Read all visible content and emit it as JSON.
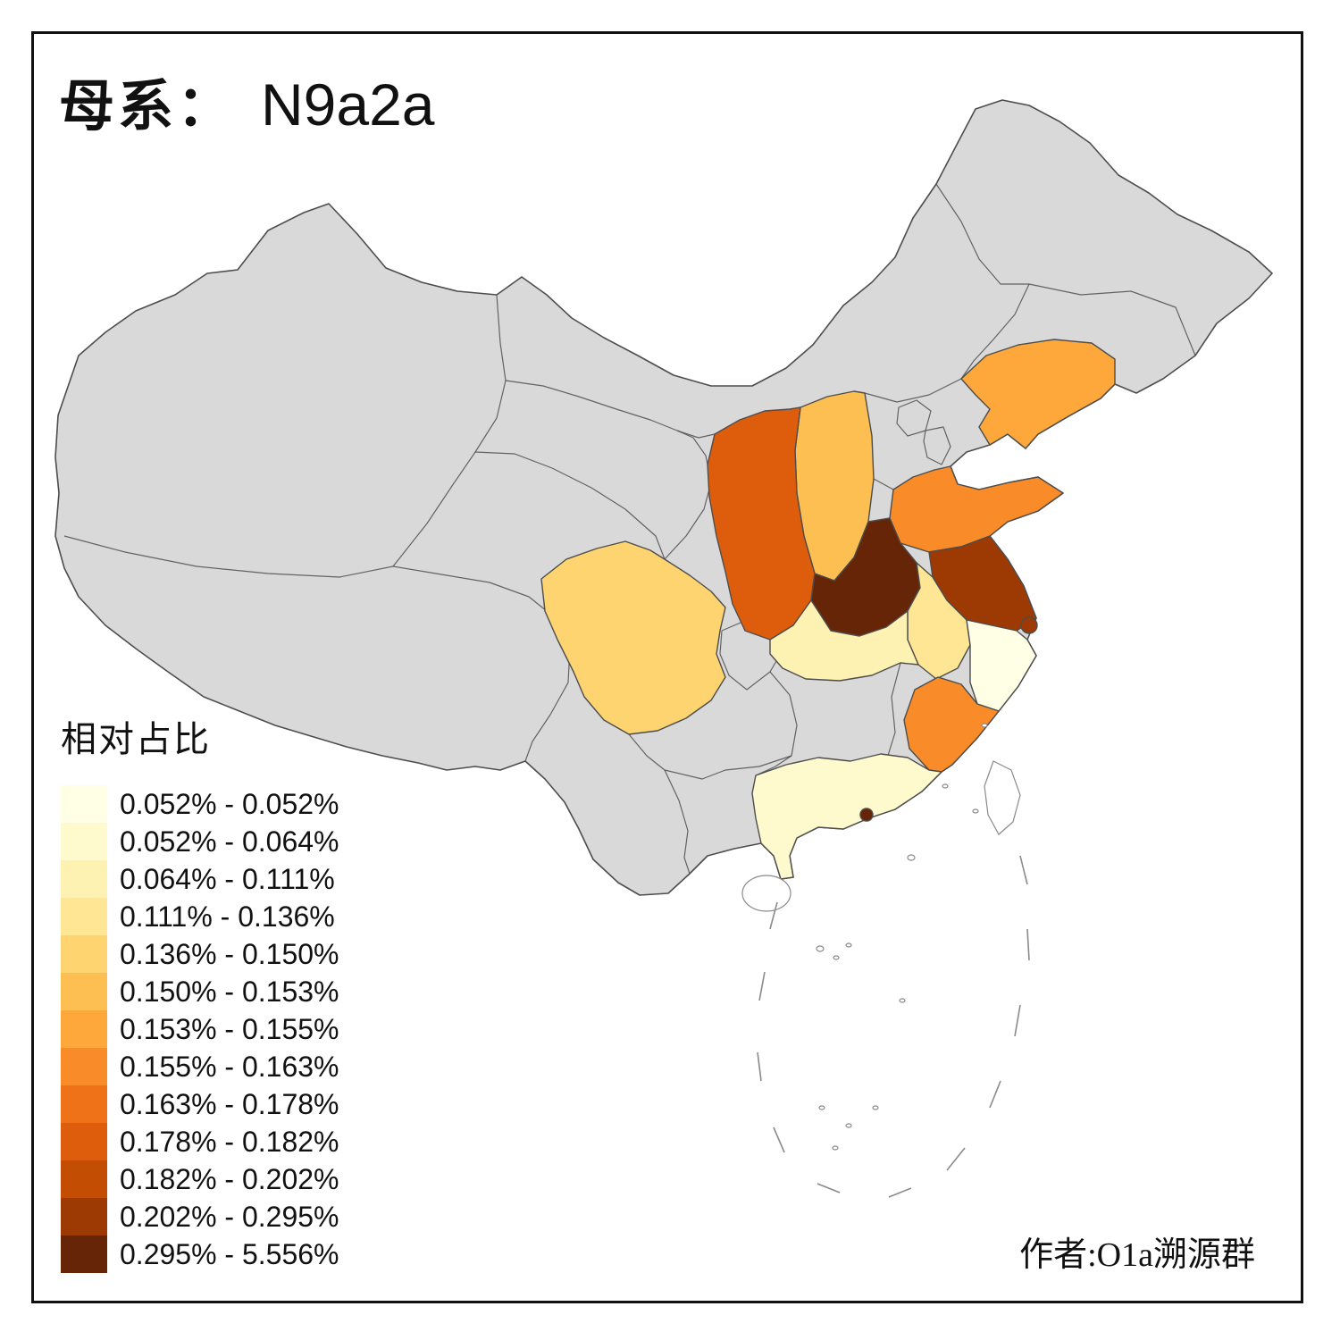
{
  "title": {
    "prefix": "母系：",
    "value": "N9a2a"
  },
  "credit": "作者:O1a溯源群",
  "legend": {
    "title": "相对占比",
    "classes": [
      {
        "label": "0.052% - 0.052%",
        "color": "#FFFFE5"
      },
      {
        "label": "0.052% - 0.064%",
        "color": "#FFF9CE"
      },
      {
        "label": "0.064% - 0.111%",
        "color": "#FEF2B2"
      },
      {
        "label": "0.111% - 0.136%",
        "color": "#FEE695"
      },
      {
        "label": "0.136% - 0.150%",
        "color": "#FED470"
      },
      {
        "label": "0.150% - 0.153%",
        "color": "#FEBF52"
      },
      {
        "label": "0.153% - 0.155%",
        "color": "#FEA73B"
      },
      {
        "label": "0.155% - 0.163%",
        "color": "#F98C28"
      },
      {
        "label": "0.163% - 0.178%",
        "color": "#EF7118"
      },
      {
        "label": "0.178% - 0.182%",
        "color": "#DE5D0C"
      },
      {
        "label": "0.182% - 0.202%",
        "color": "#C24D03"
      },
      {
        "label": "0.202% - 0.295%",
        "color": "#9D3A03"
      },
      {
        "label": "0.295% - 5.556%",
        "color": "#662506"
      }
    ]
  },
  "map": {
    "no_data_color": "#D9D9D9",
    "island_color": "#FFFFFF",
    "border_color": "#4D4D4D",
    "regions": [
      {
        "id": "liaoning",
        "name": "Liaoning",
        "class": 7
      },
      {
        "id": "shanxi",
        "name": "Shanxi",
        "class": 6
      },
      {
        "id": "shaanxi",
        "name": "Shaanxi",
        "class": 10
      },
      {
        "id": "shandong",
        "name": "Shandong",
        "class": 8
      },
      {
        "id": "henan",
        "name": "Henan",
        "class": 13
      },
      {
        "id": "jiangsu",
        "name": "Jiangsu",
        "class": 12
      },
      {
        "id": "shanghai",
        "name": "Shanghai",
        "class": 12
      },
      {
        "id": "anhui",
        "name": "Anhui",
        "class": 4
      },
      {
        "id": "hubei",
        "name": "Hubei",
        "class": 3
      },
      {
        "id": "sichuan",
        "name": "Sichuan",
        "class": 5
      },
      {
        "id": "zhejiang",
        "name": "Zhejiang",
        "class": 1
      },
      {
        "id": "fujian",
        "name": "Fujian",
        "class": 8
      },
      {
        "id": "guangdong",
        "name": "Guangdong",
        "class": 2
      },
      {
        "id": "hongkong",
        "name": "Hong Kong",
        "class": 13
      }
    ]
  }
}
